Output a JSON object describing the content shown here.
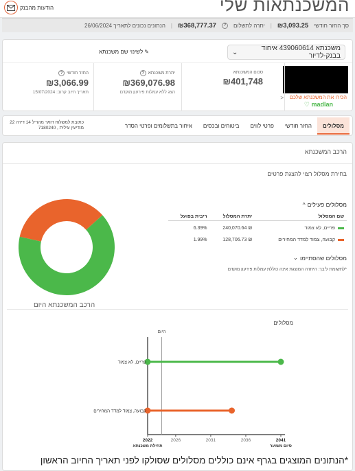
{
  "header": {
    "title": "המשכנתאות שלי",
    "messages_label": "הודעות מהבנק",
    "envelope_icon": "envelope-icon"
  },
  "summary": {
    "monthly_total_label": "סך החזר חודשי",
    "monthly_total_value": "3,093.25",
    "payoff_label": "יתרה לתשלום",
    "payoff_value": "368,777.37",
    "data_date_label": "הנתונים נכונים לתאריך 26/06/2024"
  },
  "mortgage_card": {
    "select_label": "משכנתא 439060614 איחוד בבנק-לדיור",
    "rename_label": "לשינוי שם משכנתא",
    "get_to_know_label": "הכירו את המשכנתא שלכם",
    "brand_label": "madlan",
    "stats": {
      "total": {
        "label": "סכום המשכנתא",
        "value": "₪401,748"
      },
      "balance": {
        "label": "יתרת משכנתא",
        "value": "₪369,076.98",
        "sub": "הצג ללא עמלות פירעון מוקדם"
      },
      "monthly": {
        "label": "החזר חודשי",
        "value": "₪3,066.99",
        "sub": "תאריך חיוב קרוב: 15/07/2024"
      }
    }
  },
  "tabs": {
    "items": [
      "מסלולים",
      "החזר חודשי",
      "פרטי לווים",
      "ביטוחים ובכסים",
      "איחור בתשלומים ופרטי הסדר"
    ],
    "active_index": 0,
    "address": "כתובת למשלוח דואר מהריל 14 דירה 22 מודיעין עילית , 7180240"
  },
  "composition": {
    "title": "הרכב המשכנתא",
    "hint": "בחירת מסלול רצוי להצגת פרטים",
    "active_group": "מסלולים פעילים",
    "finished_group": "מסלולים שהסתיימו",
    "columns": [
      "שם המסלול",
      "יתרת המסלול",
      "ריבית בפועל"
    ],
    "rows": [
      {
        "name": "פריים, לא צמוד",
        "balance": "₪ 240,070.64",
        "rate": "6.39%",
        "color": "#4bb84a"
      },
      {
        "name": "קבועה, צמוד למדד המחירים",
        "balance": "₪ 128,706.73",
        "rate": "1.99%",
        "color": "#e9642c"
      }
    ],
    "note": "*לתשומת ליבך: היתרה המוצגת אינה כוללת עמלות פירעון מוקדם",
    "donut_caption": "הרכב המשכנתא היום"
  },
  "chart_data": {
    "type": "timeline",
    "title": "מסלולים",
    "today_label": "היום",
    "ticks": [
      2022,
      2026,
      2031,
      2036,
      2041
    ],
    "tick_sublabels": {
      "2022": "תחילת משכנתא",
      "2041": "סיום משוער"
    },
    "today_year": 2024,
    "series": [
      {
        "name": "פריים, לא צמוד",
        "start": 2022,
        "end": 2041,
        "color": "#4bb84a"
      },
      {
        "name": "קבועה, צמוד למדד המחירים",
        "start": 2022,
        "end": 2034,
        "color": "#e9642c"
      }
    ],
    "donut": [
      {
        "name": "פריים, לא צמוד",
        "value": 240070.64,
        "color": "#4bb84a"
      },
      {
        "name": "קבועה, צמוד למדד המחירים",
        "value": 128706.73,
        "color": "#e9642c"
      }
    ]
  },
  "footer": {
    "note": "*הנתונים המוצגים בגרף אינם כוללים מסלולים שסולקו לפני תאריך החיוב הראשון"
  }
}
